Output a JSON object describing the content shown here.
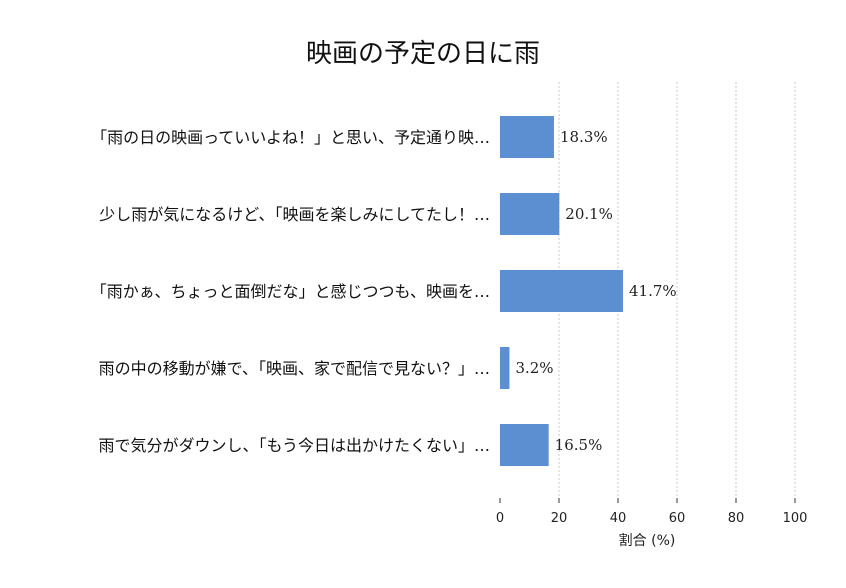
{
  "chart_data": {
    "type": "bar",
    "orientation": "horizontal",
    "title": "映画の予定の日に雨",
    "xlabel": "割合 (%)",
    "ylabel": "",
    "xlim": [
      0,
      100
    ],
    "xticks": [
      "0",
      "20",
      "40",
      "60",
      "80",
      "100"
    ],
    "grid": "x-dashed",
    "categories": [
      "「雨の日の映画っていいよね！」と思い、予定通り映…",
      "少し雨が気になるけど、「映画を楽しみにしてたし！…",
      "「雨かぁ、ちょっと面倒だな」と感じつつも、映画を…",
      "雨の中の移動が嫌で、「映画、家で配信で見ない？」…",
      "雨で気分がダウンし、「もう今日は出かけたくない」…"
    ],
    "values": [
      18.3,
      20.1,
      41.7,
      3.2,
      16.5
    ],
    "value_labels": [
      "18.3%",
      "20.1%",
      "41.7%",
      "3.2%",
      "16.5%"
    ],
    "colors": {
      "bar": "#5b8fd2"
    }
  }
}
